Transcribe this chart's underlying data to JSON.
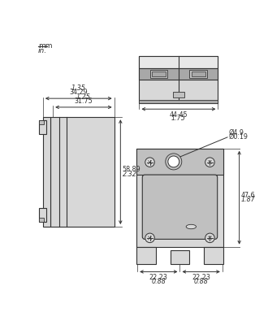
{
  "bg_color": "#ffffff",
  "line_color": "#333333",
  "fill_light": "#d8d8d8",
  "fill_mid": "#c0c0c0",
  "fill_dark": "#a8a8a8",
  "dims": {
    "top_width_mm": "44.45",
    "top_width_in": "1.75",
    "left_width1_mm": "34.29",
    "left_width1_in": "1.35",
    "left_width2_mm": "31.75",
    "left_width2_in": "1.25",
    "left_height_mm": "58.89",
    "left_height_in": "2.32",
    "right_height_mm": "47.6",
    "right_height_in": "1.87",
    "right_w1_mm": "22.23",
    "right_w1_in": "0.88",
    "right_w2_mm": "22.23",
    "right_w2_in": "0.88",
    "hole_mm": "Ø4.9",
    "hole_in": "Ø0.19"
  }
}
